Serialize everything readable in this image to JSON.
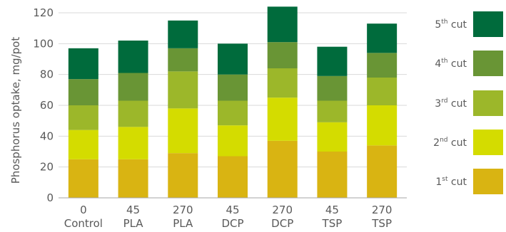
{
  "chart_data": {
    "type": "bar",
    "stacked": true,
    "ylabel": "Phosphorus optake, mg/pot",
    "ylim": [
      0,
      120
    ],
    "yticks": [
      0,
      20,
      40,
      60,
      80,
      100,
      120
    ],
    "grid": true,
    "legend_position": "right",
    "categories": [
      {
        "line1": "0",
        "line2": "Control"
      },
      {
        "line1": "45",
        "line2": "PLA"
      },
      {
        "line1": "270",
        "line2": "PLA"
      },
      {
        "line1": "45",
        "line2": "DCP"
      },
      {
        "line1": "270",
        "line2": "DCP"
      },
      {
        "line1": "45",
        "line2": "TSP"
      },
      {
        "line1": "270",
        "line2": "TSP"
      }
    ],
    "series": [
      {
        "base": "1",
        "sup": "st",
        "suffix": " cut",
        "color": "#d9b412",
        "values": [
          25,
          25,
          29,
          27,
          37,
          30,
          34
        ]
      },
      {
        "base": "2",
        "sup": "nd",
        "suffix": " cut",
        "color": "#d4dc00",
        "values": [
          19,
          21,
          29,
          20,
          28,
          19,
          26
        ]
      },
      {
        "base": "3",
        "sup": "rd",
        "suffix": " cut",
        "color": "#9cb72a",
        "values": [
          16,
          17,
          24,
          16,
          19,
          14,
          18
        ]
      },
      {
        "base": "4",
        "sup": "th",
        "suffix": " cut",
        "color": "#699535",
        "values": [
          17,
          18,
          15,
          17,
          17,
          16,
          16
        ]
      },
      {
        "base": "5",
        "sup": "th",
        "suffix": " cut",
        "color": "#006b3c",
        "values": [
          20,
          21,
          18,
          20,
          23,
          19,
          19
        ]
      }
    ]
  }
}
